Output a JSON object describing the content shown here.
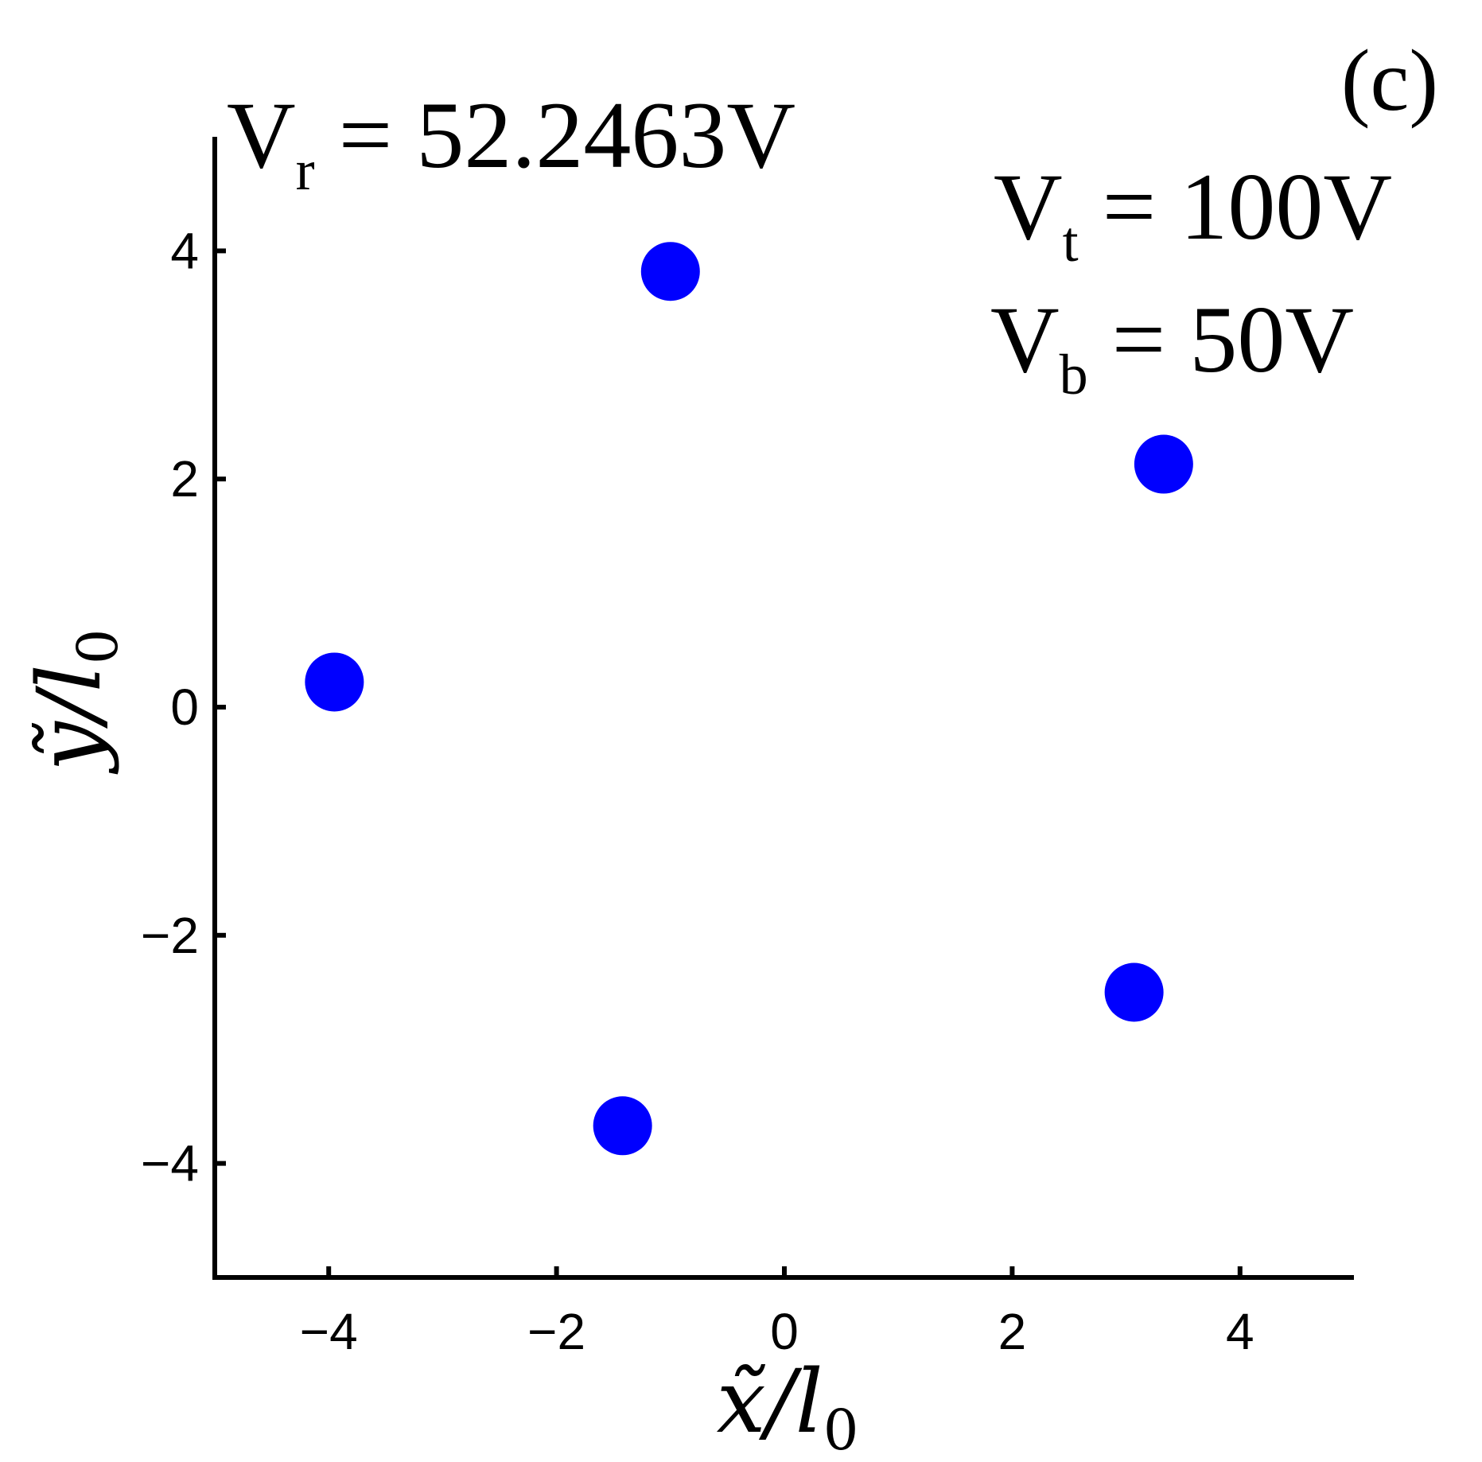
{
  "chart_data": {
    "type": "scatter",
    "panel_label": "(c)",
    "xlabel": {
      "main": "x̃/l",
      "sub": "0"
    },
    "ylabel": {
      "main": "ỹ/l",
      "sub": "0"
    },
    "xlim": [
      -5,
      5
    ],
    "ylim": [
      -5,
      5
    ],
    "xticks": [
      -4,
      -2,
      0,
      2,
      4
    ],
    "yticks": [
      -4,
      -2,
      0,
      2,
      4
    ],
    "xtick_labels": [
      "−4",
      "−2",
      "0",
      "2",
      "4"
    ],
    "ytick_labels": [
      "−4",
      "−2",
      "0",
      "2",
      "4"
    ],
    "grid": false,
    "marker_color": "#0000ff",
    "points": [
      {
        "x": -3.95,
        "y": 0.22
      },
      {
        "x": -1.0,
        "y": 3.82
      },
      {
        "x": 3.33,
        "y": 2.13
      },
      {
        "x": 3.07,
        "y": -2.5
      },
      {
        "x": -1.42,
        "y": -3.67
      }
    ],
    "annotations": [
      {
        "main": "V",
        "sub": "r",
        "rest": " = 52.2463V"
      },
      {
        "main": "V",
        "sub": "t",
        "rest": " = 100V"
      },
      {
        "main": "V",
        "sub": "b",
        "rest": " = 50V"
      }
    ]
  }
}
